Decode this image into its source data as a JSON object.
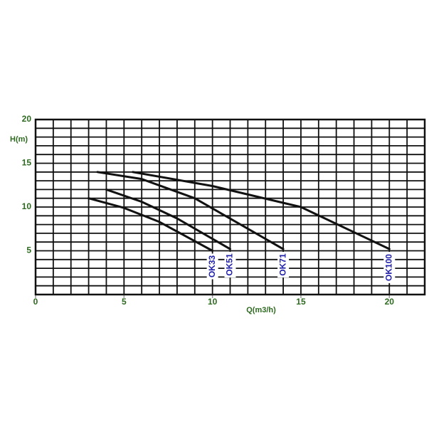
{
  "chart_data": {
    "type": "line",
    "x_label": "Q(m3/h)",
    "y_label": "H(m)",
    "xlim": [
      0,
      22
    ],
    "ylim": [
      0,
      20
    ],
    "xticks": [
      0,
      5,
      10,
      15,
      20
    ],
    "yticks": [
      5,
      10,
      15,
      20
    ],
    "grid": true,
    "xgrid": [
      0,
      1,
      2,
      3,
      4,
      5,
      6,
      7,
      8,
      9,
      10,
      11,
      12,
      13,
      14,
      15,
      16,
      17,
      18,
      19,
      20,
      21,
      22
    ],
    "ygrid": [
      0,
      1,
      2,
      3,
      4,
      5,
      6,
      7,
      8,
      9,
      10,
      11,
      12,
      13,
      14,
      15,
      16,
      17,
      18,
      19,
      20
    ],
    "series": [
      {
        "name": "OK33",
        "color": "#111111",
        "x": [
          3,
          5,
          7,
          10
        ],
        "values": [
          11,
          9.9,
          8.3,
          5
        ]
      },
      {
        "name": "OK51",
        "color": "#111111",
        "x": [
          4,
          6,
          8,
          11
        ],
        "values": [
          12,
          10.6,
          8.7,
          5.2
        ]
      },
      {
        "name": "OK71",
        "color": "#111111",
        "x": [
          3.5,
          6,
          9,
          14
        ],
        "values": [
          14,
          13.2,
          11,
          5.2
        ]
      },
      {
        "name": "OK100",
        "color": "#111111",
        "x": [
          5.5,
          10,
          15,
          20
        ],
        "values": [
          14,
          12.4,
          10,
          5.2
        ]
      }
    ]
  }
}
